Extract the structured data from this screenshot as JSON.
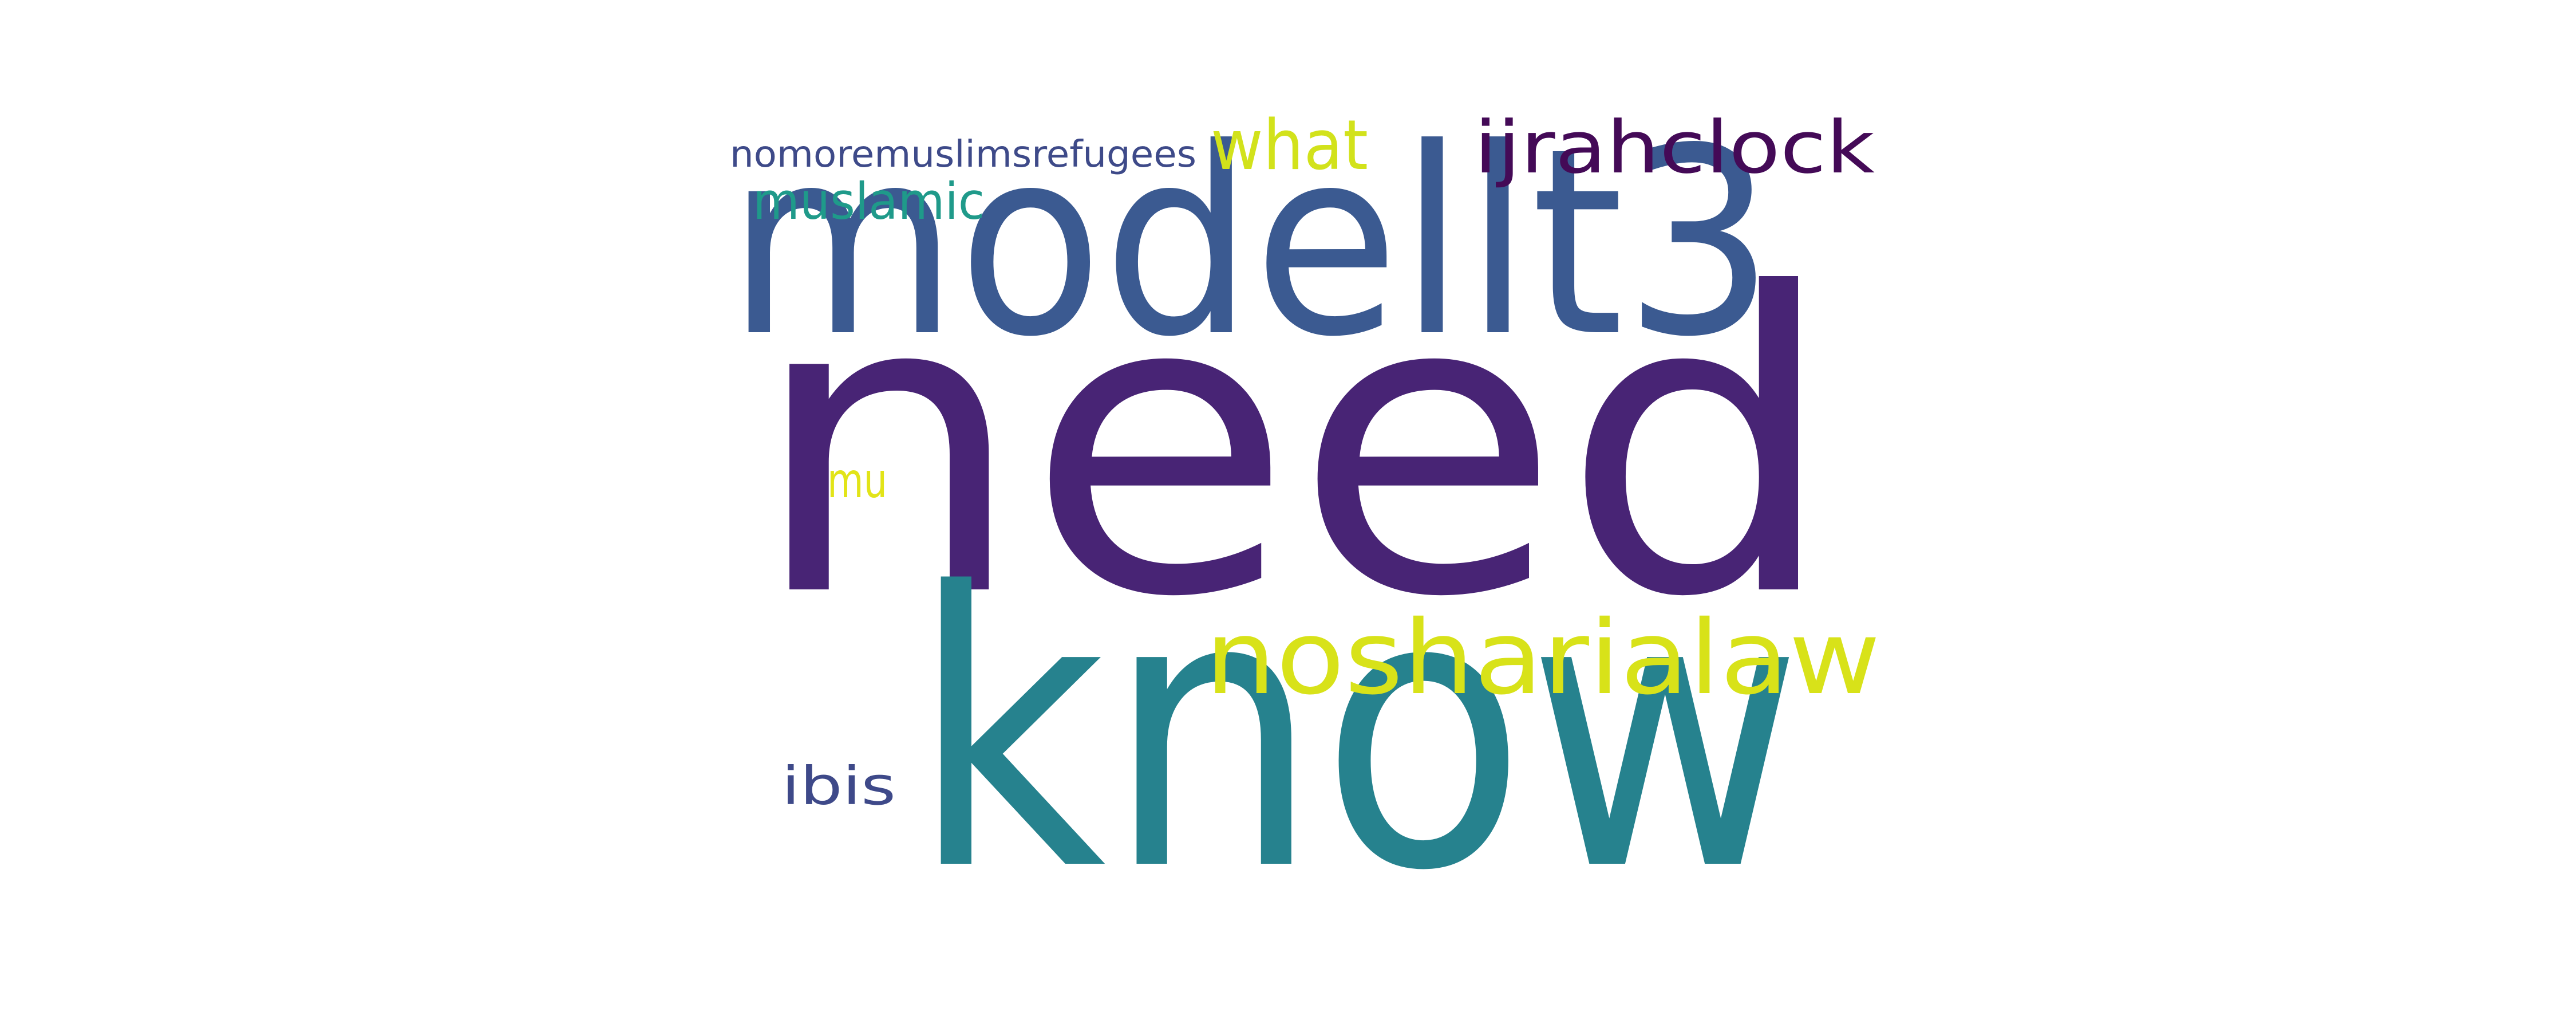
{
  "words": [
    {
      "id": "need",
      "text": "need",
      "color": "#482475"
    },
    {
      "id": "know",
      "text": "know",
      "color": "#26828e"
    },
    {
      "id": "modellt3",
      "text": "modellt3",
      "color": "#3b5a91"
    },
    {
      "id": "noshar",
      "text": "nosharialaw",
      "color": "#d8e219"
    },
    {
      "id": "ijrah",
      "text": "ijrahclock",
      "color": "#440a57"
    },
    {
      "id": "what",
      "text": "what",
      "color": "#d2e21b"
    },
    {
      "id": "muslamic",
      "text": "muslamic",
      "color": "#1f9a8a"
    },
    {
      "id": "nomore",
      "text": "nomoremuslimsrefugees",
      "color": "#3e4a89"
    },
    {
      "id": "ibis",
      "text": "ibis",
      "color": "#3e4989"
    },
    {
      "id": "mu",
      "text": "mu",
      "color": "#e2e418"
    }
  ]
}
